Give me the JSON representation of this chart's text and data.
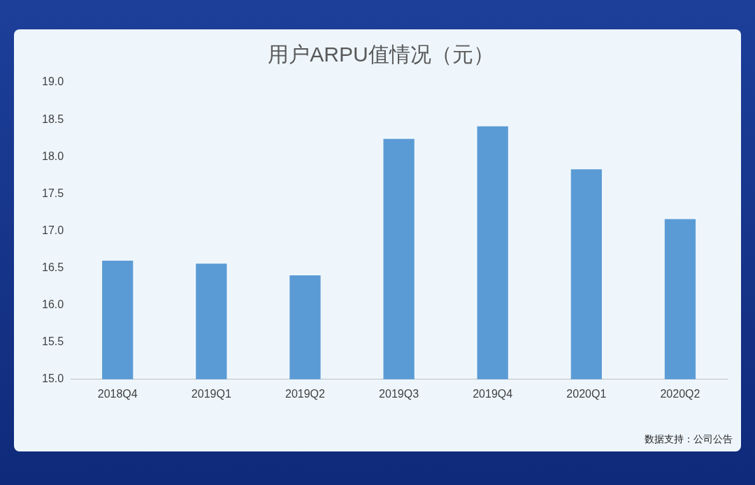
{
  "chart_data": {
    "type": "bar",
    "title": "用户ARPU值情况（元）",
    "categories": [
      "2018Q4",
      "2019Q1",
      "2019Q2",
      "2019Q3",
      "2019Q4",
      "2020Q1",
      "2020Q2"
    ],
    "values": [
      16.6,
      16.56,
      16.4,
      18.24,
      18.41,
      17.83,
      17.16
    ],
    "color": "#5b9bd5",
    "ylim": [
      15,
      19
    ],
    "yticks": [
      {
        "value": 15,
        "label": "15.0"
      },
      {
        "value": 15.5,
        "label": "15.5"
      },
      {
        "value": 16,
        "label": "16.0"
      },
      {
        "value": 16.5,
        "label": "16.5"
      },
      {
        "value": 17,
        "label": "17.0"
      },
      {
        "value": 17.5,
        "label": "17.5"
      },
      {
        "value": 18,
        "label": "18.0"
      },
      {
        "value": 18.5,
        "label": "18.5"
      },
      {
        "value": 19,
        "label": "19.0"
      }
    ],
    "grid": false,
    "legend": false,
    "annotations": [
      "数据支持：公司公告"
    ]
  }
}
